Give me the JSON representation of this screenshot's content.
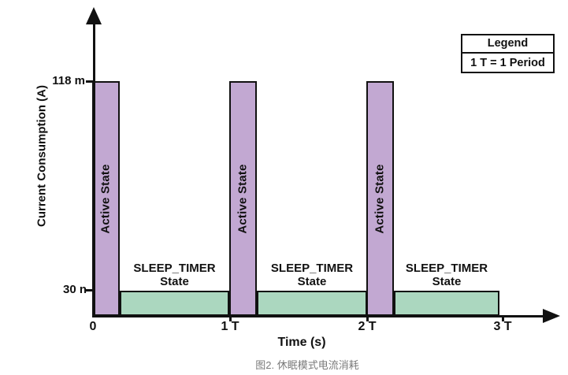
{
  "caption": "图2. 休眠模式电流消耗",
  "legend": {
    "title": "Legend",
    "entry": "1 T = 1 Period"
  },
  "axes": {
    "x_label": "Time (s)",
    "y_label": "Current Consumption (A)",
    "x_ticks": [
      "0",
      "1 T",
      "2 T",
      "3 T"
    ],
    "y_ticks": [
      "118 m",
      "30 n"
    ]
  },
  "states": {
    "active": {
      "label": "Active State",
      "level_label": "118 m",
      "color": "#c2a8d2",
      "border": "#111111"
    },
    "sleep": {
      "label": "SLEEP_TIMER",
      "label_line2": "State",
      "level_label": "30 n",
      "color": "#abd7bf",
      "border": "#111111"
    }
  },
  "chart_data": {
    "type": "bar",
    "title": "",
    "xlabel": "Time (s)",
    "ylabel": "Current Consumption (A)",
    "x_tick_labels": [
      "0",
      "1 T",
      "2 T",
      "3 T"
    ],
    "y_tick_labels": [
      "30 n",
      "118 m"
    ],
    "periods": 3,
    "series": [
      {
        "name": "Active State",
        "level_A": "118 m",
        "color": "#c2a8d2",
        "period_fraction_start": 0.0,
        "period_fraction_end": 0.2,
        "occurs_at_period_starts": [
          0,
          1,
          2
        ],
        "unit": "T"
      },
      {
        "name": "SLEEP_TIMER State",
        "level_A": "30 n",
        "color": "#abd7bf",
        "period_fraction_start": 0.2,
        "period_fraction_end": 1.0,
        "occurs_at_period_starts": [
          0,
          1,
          2
        ],
        "unit": "T"
      }
    ],
    "legend": {
      "position": "top-right",
      "title": "Legend",
      "entries": [
        "1 T = 1 Period"
      ]
    },
    "notes": "Square-wave schematic: current alternates between 118 mA (Active State) and 30 nA (SLEEP_TIMER State) each period T; y-scale is not linear."
  }
}
